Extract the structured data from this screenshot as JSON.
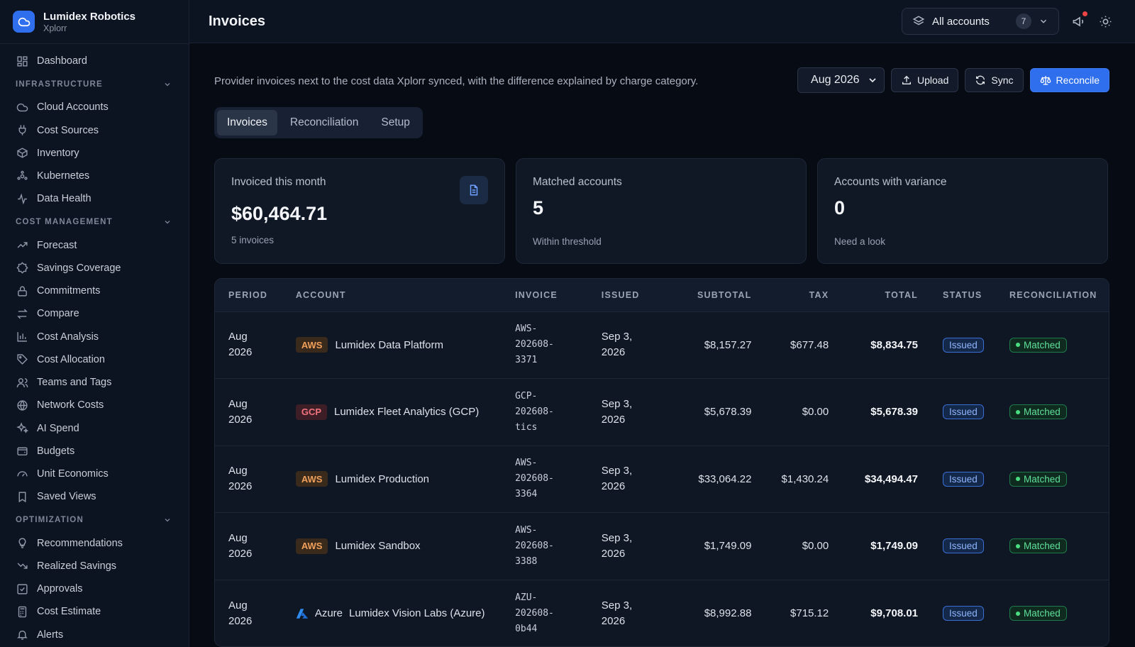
{
  "app": {
    "org_name": "Lumidex Robotics",
    "product": "Xplorr",
    "logo_icon": "cloud-icon",
    "accent": "#2f6fed"
  },
  "sidebar": {
    "dashboard": {
      "label": "Dashboard",
      "icon": "dashboard-icon"
    },
    "sections": [
      {
        "title": "INFRASTRUCTURE",
        "items": [
          {
            "label": "Cloud Accounts",
            "icon": "cloud-icon"
          },
          {
            "label": "Cost Sources",
            "icon": "plug-icon"
          },
          {
            "label": "Inventory",
            "icon": "box-icon"
          },
          {
            "label": "Kubernetes",
            "icon": "kubernetes-icon"
          },
          {
            "label": "Data Health",
            "icon": "activity-icon"
          }
        ]
      },
      {
        "title": "COST MANAGEMENT",
        "items": [
          {
            "label": "Forecast",
            "icon": "trending-up-icon"
          },
          {
            "label": "Savings Coverage",
            "icon": "badge-icon"
          },
          {
            "label": "Commitments",
            "icon": "lock-icon"
          },
          {
            "label": "Compare",
            "icon": "arrows-icon"
          },
          {
            "label": "Cost Analysis",
            "icon": "bar-chart-icon"
          },
          {
            "label": "Cost Allocation",
            "icon": "tag-icon"
          },
          {
            "label": "Teams and Tags",
            "icon": "users-icon"
          },
          {
            "label": "Network Costs",
            "icon": "globe-icon"
          },
          {
            "label": "AI Spend",
            "icon": "sparkles-icon"
          },
          {
            "label": "Budgets",
            "icon": "wallet-icon"
          },
          {
            "label": "Unit Economics",
            "icon": "gauge-icon"
          },
          {
            "label": "Saved Views",
            "icon": "bookmark-icon"
          }
        ]
      },
      {
        "title": "OPTIMIZATION",
        "items": [
          {
            "label": "Recommendations",
            "icon": "lightbulb-icon"
          },
          {
            "label": "Realized Savings",
            "icon": "trending-down-icon"
          },
          {
            "label": "Approvals",
            "icon": "check-square-icon"
          },
          {
            "label": "Cost Estimate",
            "icon": "calculator-icon"
          },
          {
            "label": "Alerts",
            "icon": "bell-icon"
          }
        ]
      }
    ]
  },
  "header": {
    "title": "Invoices",
    "account_selector": {
      "label": "All accounts",
      "count": "7"
    }
  },
  "main": {
    "description": "Provider invoices next to the cost data Xplorr synced, with the difference explained by charge category.",
    "period_select": "Aug 2026",
    "upload_label": "Upload",
    "sync_label": "Sync",
    "reconcile_label": "Reconcile",
    "tabs": [
      "Invoices",
      "Reconciliation",
      "Setup"
    ],
    "cards": [
      {
        "label": "Invoiced this month",
        "value": "$60,464.71",
        "sub": "5 invoices"
      },
      {
        "label": "Matched accounts",
        "value": "5",
        "sub": "Within threshold"
      },
      {
        "label": "Accounts with variance",
        "value": "0",
        "sub": "Need a look"
      }
    ],
    "table": {
      "columns": [
        "PERIOD",
        "ACCOUNT",
        "INVOICE",
        "ISSUED",
        "SUBTOTAL",
        "TAX",
        "TOTAL",
        "STATUS",
        "RECONCILIATION"
      ],
      "rows": [
        {
          "period_1": "Aug",
          "period_2": "2026",
          "provider": "AWS",
          "account": "Lumidex Data Platform",
          "inv_1": "AWS-",
          "inv_2": "202608-",
          "inv_3": "3371",
          "issued_1": "Sep 3,",
          "issued_2": "2026",
          "subtotal": "$8,157.27",
          "tax": "$677.48",
          "total": "$8,834.75",
          "status": "Issued",
          "recon": "Matched"
        },
        {
          "period_1": "Aug",
          "period_2": "2026",
          "provider": "GCP",
          "account": "Lumidex Fleet Analytics (GCP)",
          "inv_1": "GCP-",
          "inv_2": "202608-",
          "inv_3": "tics",
          "issued_1": "Sep 3,",
          "issued_2": "2026",
          "subtotal": "$5,678.39",
          "tax": "$0.00",
          "total": "$5,678.39",
          "status": "Issued",
          "recon": "Matched"
        },
        {
          "period_1": "Aug",
          "period_2": "2026",
          "provider": "AWS",
          "account": "Lumidex Production",
          "inv_1": "AWS-",
          "inv_2": "202608-",
          "inv_3": "3364",
          "issued_1": "Sep 3,",
          "issued_2": "2026",
          "subtotal": "$33,064.22",
          "tax": "$1,430.24",
          "total": "$34,494.47",
          "status": "Issued",
          "recon": "Matched"
        },
        {
          "period_1": "Aug",
          "period_2": "2026",
          "provider": "AWS",
          "account": "Lumidex Sandbox",
          "inv_1": "AWS-",
          "inv_2": "202608-",
          "inv_3": "3388",
          "issued_1": "Sep 3,",
          "issued_2": "2026",
          "subtotal": "$1,749.09",
          "tax": "$0.00",
          "total": "$1,749.09",
          "status": "Issued",
          "recon": "Matched"
        },
        {
          "period_1": "Aug",
          "period_2": "2026",
          "provider": "Azure",
          "account": "Lumidex Vision Labs (Azure)",
          "inv_1": "AZU-",
          "inv_2": "202608-",
          "inv_3": "0b44",
          "issued_1": "Sep 3,",
          "issued_2": "2026",
          "subtotal": "$8,992.88",
          "tax": "$715.12",
          "total": "$9,708.01",
          "status": "Issued",
          "recon": "Matched"
        }
      ]
    }
  }
}
